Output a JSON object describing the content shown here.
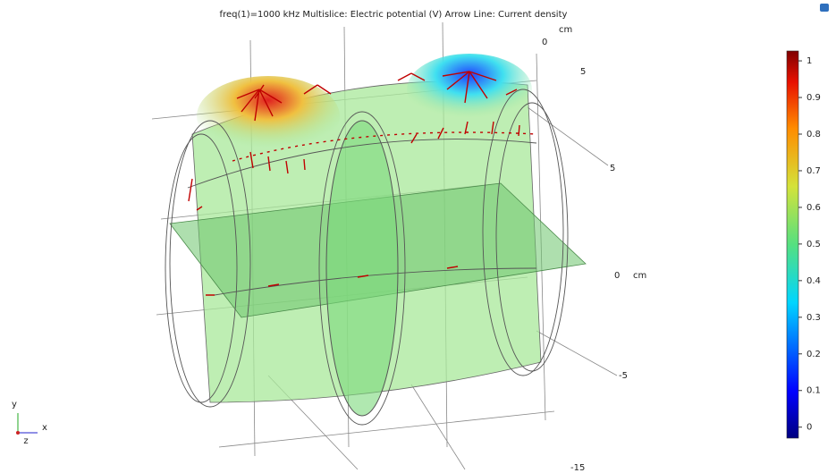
{
  "title": "freq(1)=1000 kHz  Multislice: Electric potential (V)  Arrow Line: Current density",
  "triad": {
    "x": "x",
    "y": "y",
    "z": "z"
  },
  "axis_labels": [
    "cm",
    "0",
    "5",
    "5",
    "0",
    "cm",
    "-5",
    "-15"
  ],
  "colorbar": {
    "lim": [
      -0.03,
      1.027
    ],
    "ticks": [
      0,
      0.1,
      0.2,
      0.3,
      0.4,
      0.5,
      0.6,
      0.7,
      0.8,
      0.9,
      1
    ]
  }
}
